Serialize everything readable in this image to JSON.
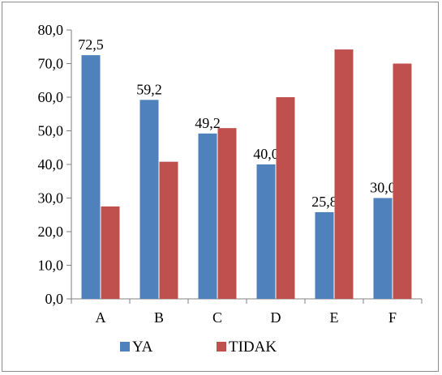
{
  "chart_data": {
    "type": "bar",
    "categories": [
      "A",
      "B",
      "C",
      "D",
      "E",
      "F"
    ],
    "series": [
      {
        "name": "YA",
        "color": "#4f81bd",
        "values": [
          72.5,
          59.2,
          49.2,
          40.0,
          25.8,
          30.0
        ],
        "data_labels": [
          "72,5",
          "59,2",
          "49,2",
          "40,0",
          "25,8",
          "30,0"
        ]
      },
      {
        "name": "TIDAK",
        "color": "#c0504d",
        "values": [
          27.5,
          40.8,
          50.8,
          60.0,
          74.2,
          70.0
        ]
      }
    ],
    "ylim": [
      0,
      80
    ],
    "yticks": [
      0,
      10,
      20,
      30,
      40,
      50,
      60,
      70,
      80
    ],
    "ytick_labels": [
      "0,0",
      "10,0",
      "20,0",
      "30,0",
      "40,0",
      "50,0",
      "60,0",
      "70,0",
      "80,0"
    ],
    "grid": false,
    "legend_position": "bottom",
    "title": "",
    "xlabel": "",
    "ylabel": ""
  }
}
